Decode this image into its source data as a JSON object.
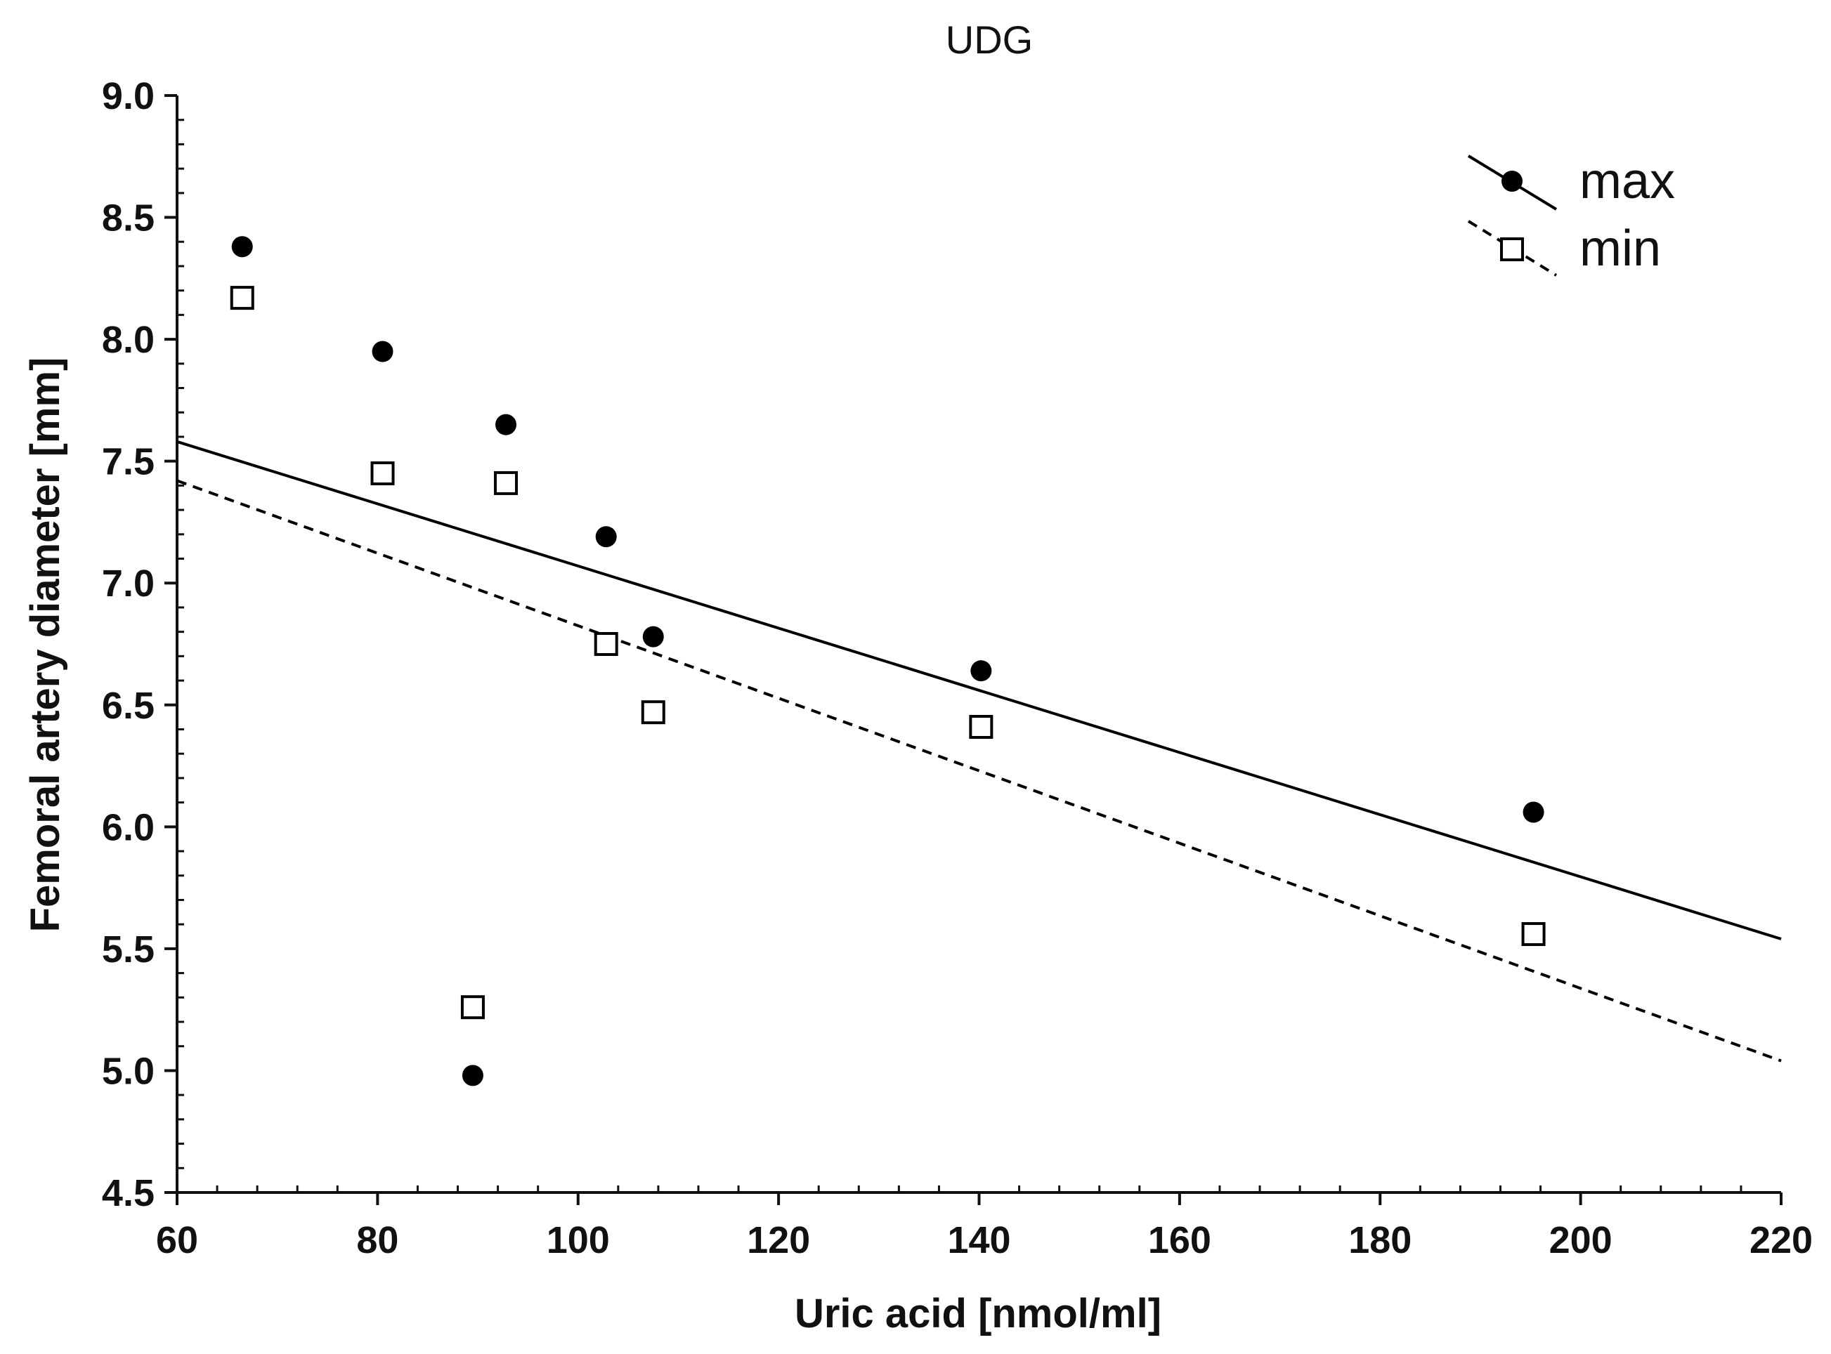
{
  "chart_data": {
    "type": "scatter",
    "title": "UDG",
    "xlabel": "Uric acid [nmol/ml]",
    "ylabel": "Femoral artery diameter [mm]",
    "xlim": [
      60,
      220
    ],
    "ylim": [
      4.5,
      9.0
    ],
    "xticks": [
      60,
      80,
      100,
      120,
      140,
      160,
      180,
      200,
      220
    ],
    "xtick_labels": [
      "60",
      "80",
      "100",
      "120",
      "140",
      "160",
      "180",
      "200",
      "220"
    ],
    "yticks": [
      4.5,
      5.0,
      5.5,
      6.0,
      6.5,
      7.0,
      7.5,
      8.0,
      8.5,
      9.0
    ],
    "ytick_labels": [
      "4.5",
      "5.0",
      "5.5",
      "6.0",
      "6.5",
      "7.0",
      "7.5",
      "8.0",
      "8.5",
      "9.0"
    ],
    "grid": false,
    "legend_position": "top-right",
    "series": [
      {
        "name": "max",
        "marker": "filled-circle",
        "line_style": "solid",
        "color": "#000000",
        "points": [
          {
            "x": 66.5,
            "y": 8.38
          },
          {
            "x": 80.5,
            "y": 7.95
          },
          {
            "x": 89.5,
            "y": 4.98
          },
          {
            "x": 92.8,
            "y": 7.65
          },
          {
            "x": 102.8,
            "y": 7.19
          },
          {
            "x": 107.5,
            "y": 6.78
          },
          {
            "x": 140.2,
            "y": 6.64
          },
          {
            "x": 195.3,
            "y": 6.06
          }
        ],
        "fit": {
          "x1": 60,
          "y1": 7.58,
          "x2": 220,
          "y2": 5.54
        }
      },
      {
        "name": "min",
        "marker": "open-square",
        "line_style": "dashed",
        "color": "#000000",
        "points": [
          {
            "x": 66.5,
            "y": 8.17
          },
          {
            "x": 80.5,
            "y": 7.45
          },
          {
            "x": 89.5,
            "y": 5.26
          },
          {
            "x": 92.8,
            "y": 7.41
          },
          {
            "x": 102.8,
            "y": 6.75
          },
          {
            "x": 107.5,
            "y": 6.47
          },
          {
            "x": 140.2,
            "y": 6.41
          },
          {
            "x": 195.3,
            "y": 5.56
          }
        ],
        "fit": {
          "x1": 60,
          "y1": 7.42,
          "x2": 220,
          "y2": 5.04
        }
      }
    ]
  }
}
